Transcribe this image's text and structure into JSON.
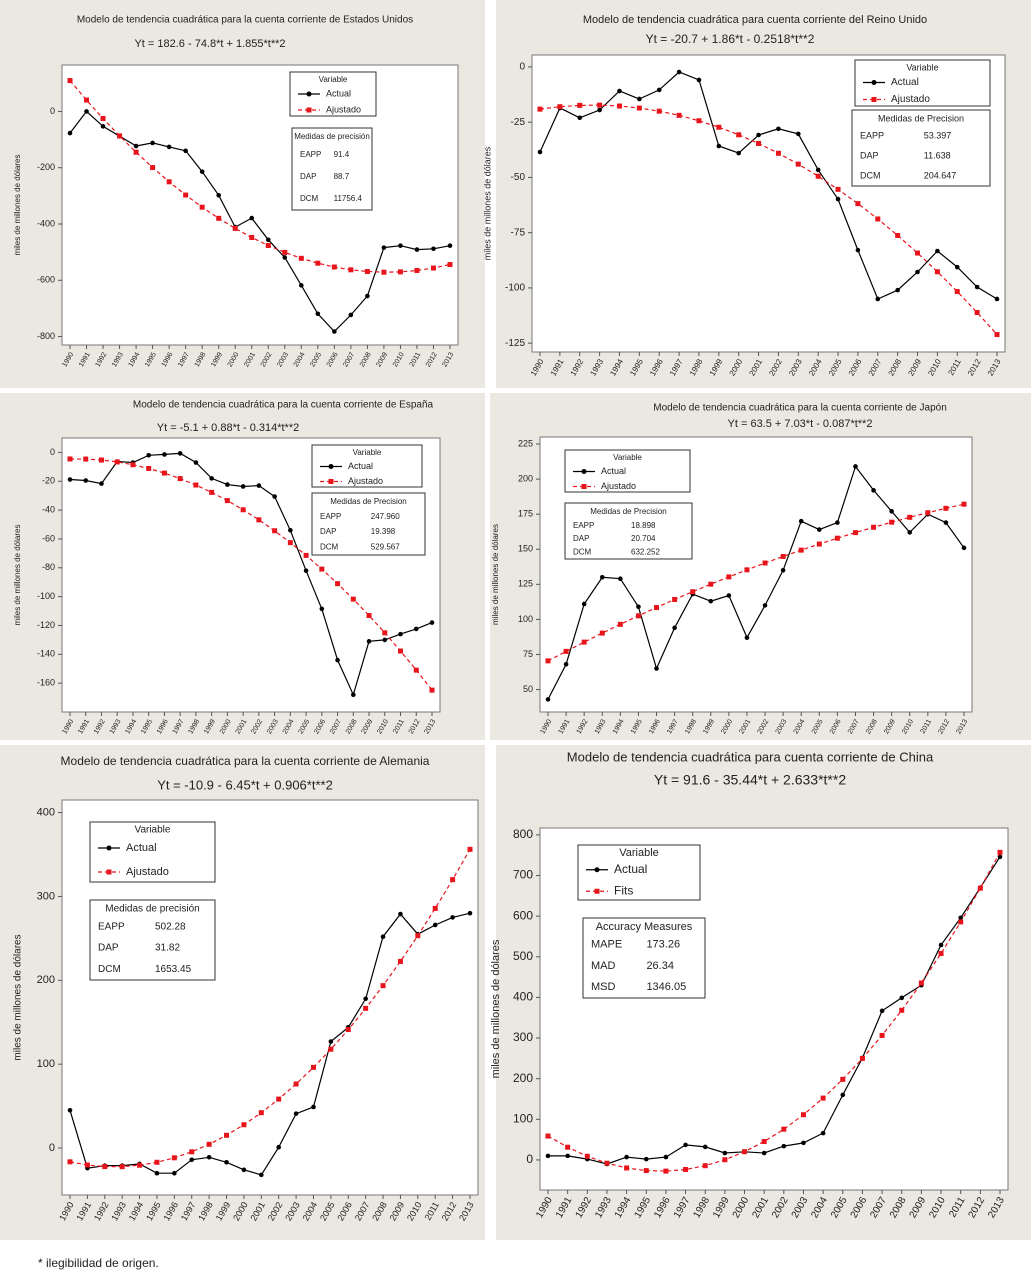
{
  "chart_data": [
    {
      "type": "line",
      "title": "Modelo de tendencia cuadrática para la cuenta corriente de Estados Unidos",
      "subtitle": "Yt = 182.6 - 74.8*t + 1.855*t**2",
      "ylabel": "miles de millones de dólares",
      "categories": [
        "1990",
        "1991",
        "1992",
        "1993",
        "1994",
        "1995",
        "1996",
        "1997",
        "1998",
        "1999",
        "2000",
        "2001",
        "2002",
        "2003",
        "2004",
        "2005",
        "2006",
        "2007",
        "2008",
        "2009",
        "2010",
        "2011",
        "2012",
        "2013"
      ],
      "series": [
        {
          "name": "Actual",
          "color": "#000000",
          "values": [
            -77,
            0,
            -53,
            -88,
            -123,
            -112,
            -126,
            -140,
            -214,
            -298,
            -411,
            -379,
            -456,
            -519,
            -618,
            -719,
            -782,
            -723,
            -656,
            -484,
            -477,
            -491,
            -488,
            -477
          ]
        },
        {
          "name": "Ajustado",
          "color": "#e8141b",
          "values": [
            109.7,
            40.4,
            -25.1,
            -86.9,
            -145.0,
            -199.4,
            -250.1,
            -297.1,
            -340.3,
            -379.9,
            -415.7,
            -447.9,
            -476.3,
            -501.0,
            -522.0,
            -539.3,
            -552.9,
            -562.8,
            -568.9,
            -571.4,
            -570.1,
            -565.2,
            -556.5,
            -544.1
          ]
        }
      ],
      "ylim": [
        -830,
        165
      ],
      "yticks": [
        0,
        -200,
        -400,
        -600,
        -800
      ],
      "legend_title": "Variable",
      "measures": {
        "title": "Medidas de precisión",
        "rows": [
          [
            "EAPP",
            "91.4"
          ],
          [
            "DAP",
            "88.7"
          ],
          [
            "DCM",
            "11756.4"
          ]
        ]
      }
    },
    {
      "type": "line",
      "title": "Modelo de tendencia cuadrática para cuenta corriente del Reino Unido",
      "subtitle": "Yt = -20.7 + 1.86*t - 0.2518*t**2",
      "ylabel": "miles de millones de dólares",
      "categories": [
        "1990",
        "1991",
        "1992",
        "1993",
        "1994",
        "1995",
        "1996",
        "1997",
        "1998",
        "1999",
        "2000",
        "2001",
        "2002",
        "2003",
        "2004",
        "2005",
        "2006",
        "2007",
        "2008",
        "2009",
        "2010",
        "2011",
        "2012",
        "2013"
      ],
      "series": [
        {
          "name": "Actual",
          "color": "#000000",
          "values": [
            -38.5,
            -18.6,
            -23,
            -19.5,
            -10.9,
            -14.5,
            -10.4,
            -2.3,
            -5.9,
            -35.8,
            -39,
            -30.8,
            -28,
            -30.3,
            -46.6,
            -59.8,
            -82.9,
            -105,
            -101,
            -92.8,
            -83.3,
            -90.6,
            -99.6,
            -105
          ]
        },
        {
          "name": "Ajustado",
          "color": "#e8141b",
          "values": [
            -19.09,
            -17.99,
            -17.39,
            -17.29,
            -17.7,
            -18.6,
            -20.02,
            -21.9,
            -24.36,
            -27.28,
            -30.71,
            -34.64,
            -39.07,
            -44.0,
            -49.46,
            -55.4,
            -61.85,
            -68.8,
            -76.26,
            -84.22,
            -92.68,
            -101.65,
            -111.12,
            -121.1
          ]
        }
      ],
      "ylim": [
        -129,
        5.4
      ],
      "yticks": [
        0,
        -25,
        -50,
        -75,
        -100,
        -125
      ],
      "legend_title": "Variable",
      "measures": {
        "title": "Medidas de Precision",
        "rows": [
          [
            "EAPP",
            "53.397"
          ],
          [
            "DAP",
            "11.638"
          ],
          [
            "DCM",
            "204.647"
          ]
        ]
      }
    },
    {
      "type": "line",
      "title": "Modelo de tendencia cuadrática para la cuenta corriente de España",
      "subtitle": "Yt = -5.1 + 0.88*t - 0.314*t**2",
      "ylabel": "miles de millones de dólares",
      "categories": [
        "1990",
        "1991",
        "1992",
        "1993",
        "1994",
        "1995",
        "1996",
        "1997",
        "1998",
        "1999",
        "2000",
        "2001",
        "2002",
        "2003",
        "2004",
        "2005",
        "2006",
        "2007",
        "2008",
        "2009",
        "2010",
        "2011",
        "2012",
        "2013"
      ],
      "series": [
        {
          "name": "Actual",
          "color": "#000000",
          "values": [
            -18.8,
            -19.5,
            -21.6,
            -6.3,
            -7,
            -2,
            -1.4,
            -0.7,
            -7,
            -18,
            -22.3,
            -23.6,
            -23,
            -30.6,
            -54,
            -82,
            -108.5,
            -144,
            -168,
            -131,
            -130,
            -126,
            -122.4,
            -118
          ]
        },
        {
          "name": "Ajustado",
          "color": "#e8141b",
          "values": [
            -4.53,
            -4.6,
            -5.29,
            -6.6,
            -8.55,
            -11.12,
            -14.33,
            -18.16,
            -22.61,
            -27.7,
            -33.41,
            -39.76,
            -46.73,
            -54.32,
            -62.55,
            -71.4,
            -80.89,
            -91.0,
            -101.73,
            -113.1,
            -125.09,
            -137.72,
            -150.96,
            -164.84
          ]
        }
      ],
      "ylim": [
        -180,
        10
      ],
      "yticks": [
        0,
        -20,
        -40,
        -60,
        -80,
        -100,
        -120,
        -140,
        -160
      ],
      "legend_title": "Variable",
      "measures": {
        "title": "Medidas de Precision",
        "rows": [
          [
            "EAPP",
            "247.960"
          ],
          [
            "DAP",
            "19.398"
          ],
          [
            "DCM",
            "529.567"
          ]
        ]
      }
    },
    {
      "type": "line",
      "title": "Modelo de tendencia cuadrática para la cuenta corriente de Japón",
      "subtitle": "Yt = 63.5 + 7.03*t - 0.087*t**2",
      "ylabel": "miles de millones de dólares",
      "categories": [
        "1990",
        "1991",
        "1992",
        "1993",
        "1994",
        "1995",
        "1996",
        "1997",
        "1998",
        "1999",
        "2000",
        "2001",
        "2002",
        "2003",
        "2004",
        "2005",
        "2006",
        "2007",
        "2008",
        "2009",
        "2010",
        "2011",
        "2012",
        "2013"
      ],
      "series": [
        {
          "name": "Actual",
          "color": "#000000",
          "values": [
            43,
            68,
            111,
            130,
            129,
            109,
            65,
            94,
            118,
            113,
            117,
            87,
            110,
            135,
            170,
            164,
            169,
            209,
            192,
            177,
            162,
            175,
            169,
            151
          ]
        },
        {
          "name": "Ajustado",
          "color": "#e8141b",
          "values": [
            70.44,
            77.21,
            83.81,
            90.23,
            96.48,
            102.55,
            108.45,
            114.17,
            119.72,
            125.1,
            130.3,
            135.33,
            140.18,
            144.86,
            149.37,
            153.71,
            157.87,
            161.85,
            165.67,
            169.3,
            172.76,
            176.05,
            179.16,
            182.1
          ]
        }
      ],
      "ylim": [
        34,
        230
      ],
      "yticks": [
        50,
        75,
        100,
        125,
        150,
        175,
        200,
        225
      ],
      "legend_title": "Variable",
      "measures": {
        "title": "Medidas de Precision",
        "rows": [
          [
            "EAPP",
            "18.898"
          ],
          [
            "DAP",
            "20.704"
          ],
          [
            "DCM",
            "632.252"
          ]
        ]
      }
    },
    {
      "type": "line",
      "title": "Modelo de tendencia cuadrática para la cuenta corriente de Alemania",
      "subtitle": "Yt = -10.9 - 6.45*t + 0.906*t**2",
      "ylabel": "miles de millones de dólares",
      "categories": [
        "1990",
        "1991",
        "1992",
        "1993",
        "1994",
        "1995",
        "1996",
        "1997",
        "1998",
        "1999",
        "2000",
        "2001",
        "2002",
        "2003",
        "2004",
        "2005",
        "2006",
        "2007",
        "2008",
        "2009",
        "2010",
        "2011",
        "2012",
        "2013"
      ],
      "series": [
        {
          "name": "Actual",
          "color": "#000000",
          "values": [
            45,
            -24,
            -21,
            -21,
            -19,
            -30,
            -30,
            -14,
            -11,
            -17,
            -26,
            -32,
            1,
            41,
            49,
            127,
            144,
            178,
            252,
            279,
            255,
            266,
            275,
            280
          ]
        },
        {
          "name": "Ajustado",
          "color": "#e8141b",
          "values": [
            -16.44,
            -20.18,
            -22.1,
            -22.2,
            -20.5,
            -16.98,
            -11.66,
            -4.52,
            4.44,
            15.2,
            27.78,
            42.16,
            58.36,
            76.38,
            96.2,
            117.84,
            141.28,
            166.54,
            193.62,
            222.5,
            253.2,
            285.7,
            320.02,
            356.16
          ]
        }
      ],
      "ylim": [
        -56,
        415
      ],
      "yticks": [
        0,
        100,
        200,
        300,
        400
      ],
      "legend_title": "Variable",
      "measures": {
        "title": "Medidas de precisión",
        "rows": [
          [
            "EAPP",
            "502.28"
          ],
          [
            "DAP",
            "31.82"
          ],
          [
            "DCM",
            "1653.45"
          ]
        ]
      }
    },
    {
      "type": "line",
      "title": "Modelo de tendencia cuadrática para cuenta corriente de China",
      "subtitle": "Yt = 91.6 - 35.44*t + 2.633*t**2",
      "ylabel": "miles de millones de dólares",
      "categories": [
        "1990",
        "1991",
        "1992",
        "1993",
        "1994",
        "1995",
        "1996",
        "1997",
        "1998",
        "1999",
        "2000",
        "2001",
        "2002",
        "2003",
        "2004",
        "2005",
        "2006",
        "2007",
        "2008",
        "2009",
        "2010",
        "2011",
        "2012",
        "2013"
      ],
      "series": [
        {
          "name": "Actual",
          "color": "#000000",
          "values": [
            10,
            10,
            2,
            -10,
            7,
            2,
            7,
            37,
            32,
            17,
            20,
            17,
            34,
            42,
            66,
            160,
            251,
            367,
            399,
            430,
            529,
            596,
            670,
            746
          ]
        },
        {
          "name": "Fits",
          "color": "#e8141b",
          "values": [
            58.79,
            31.25,
            8.98,
            -8.03,
            -19.78,
            -26.26,
            -27.49,
            -23.45,
            -14.14,
            0.43,
            20.26,
            45.35,
            75.71,
            111.33,
            152.22,
            198.37,
            249.78,
            306.45,
            368.39,
            435.6,
            508.07,
            585.8,
            668.8,
            757.05
          ]
        }
      ],
      "ylim": [
        -74,
        817
      ],
      "yticks": [
        0,
        100,
        200,
        300,
        400,
        500,
        600,
        700,
        800
      ],
      "legend_title": "Variable",
      "measures": {
        "title": "Accuracy Measures",
        "rows": [
          [
            "MAPE",
            "173.26"
          ],
          [
            "MAD",
            "26.34"
          ],
          [
            "MSD",
            "1346.05"
          ]
        ]
      }
    }
  ],
  "footnote": "* ilegibilidad de origen."
}
